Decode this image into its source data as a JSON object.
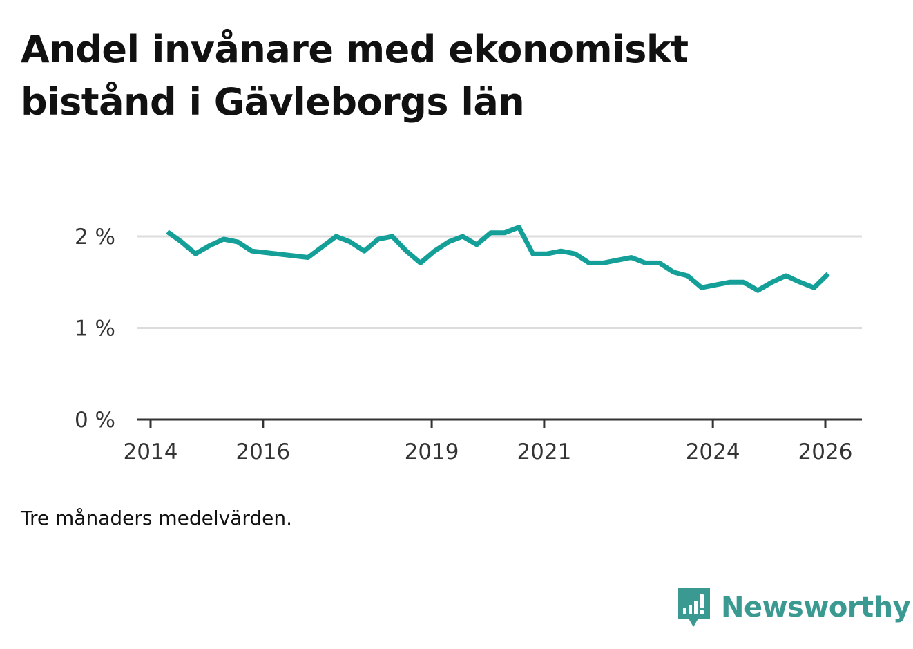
{
  "title": "Andel invånare med ekonomiskt bistånd i Gävleborgs län",
  "note": "Tre månaders medelvärden.",
  "brand": {
    "name": "Newsworthy",
    "icon": "bar-chart-speech-bubble-icon",
    "color": "#3a9a92"
  },
  "colors": {
    "line": "#14a099",
    "grid": "#dcdcdc",
    "axis": "#333333"
  },
  "chart_data": {
    "type": "line",
    "title": "Andel invånare med ekonomiskt bistånd i Gävleborgs län",
    "xlabel": "",
    "ylabel": "",
    "y_ticks": [
      0,
      1,
      2
    ],
    "y_tick_labels": [
      "0 %",
      "1 %",
      "2 %"
    ],
    "ylim": [
      0,
      2.5
    ],
    "x_ticks": [
      2014,
      2016,
      2019,
      2021,
      2024,
      2026
    ],
    "x_tick_labels": [
      "2014",
      "2016",
      "2019",
      "2021",
      "2024",
      "2026"
    ],
    "xlim": [
      2014,
      2026.7
    ],
    "grid": true,
    "series": [
      {
        "name": "Andel invånare med ekonomiskt bistånd",
        "x": [
          2014.3,
          2014.55,
          2014.8,
          2015.05,
          2015.3,
          2015.55,
          2015.8,
          2016.8,
          2017.3,
          2017.55,
          2017.8,
          2018.05,
          2018.3,
          2018.55,
          2018.8,
          2019.05,
          2019.3,
          2019.55,
          2019.8,
          2020.05,
          2020.3,
          2020.55,
          2020.8,
          2021.05,
          2021.3,
          2021.55,
          2021.8,
          2022.05,
          2022.3,
          2022.55,
          2022.8,
          2023.05,
          2023.3,
          2023.55,
          2023.8,
          2024.05,
          2024.3,
          2024.55,
          2024.8,
          2025.05,
          2025.3,
          2025.55,
          2025.8,
          2026.05
        ],
        "values": [
          2.05,
          1.94,
          1.81,
          1.9,
          1.97,
          1.94,
          1.84,
          1.77,
          2.0,
          1.94,
          1.84,
          1.97,
          2.0,
          1.84,
          1.71,
          1.84,
          1.94,
          2.0,
          1.91,
          2.04,
          2.04,
          2.1,
          1.81,
          1.81,
          1.84,
          1.81,
          1.71,
          1.71,
          1.74,
          1.77,
          1.71,
          1.71,
          1.61,
          1.57,
          1.44,
          1.47,
          1.5,
          1.5,
          1.41,
          1.5,
          1.57,
          1.5,
          1.44,
          1.59
        ]
      }
    ]
  }
}
